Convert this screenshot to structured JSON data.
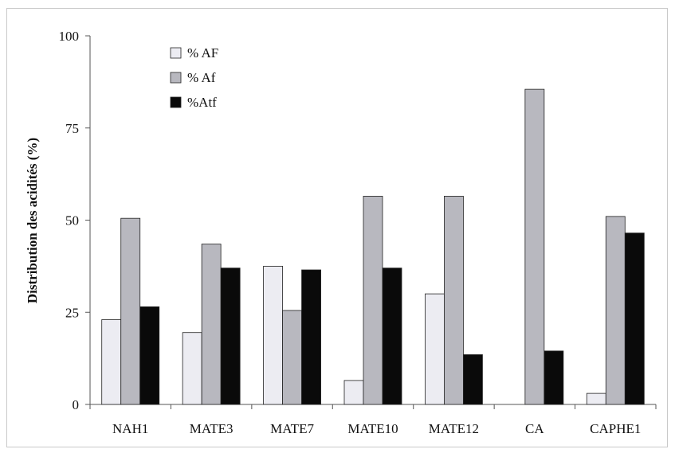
{
  "chart_data": {
    "type": "bar",
    "title": "",
    "xlabel": "",
    "ylabel": "Distribution des acidités (%)",
    "ylim": [
      0,
      100
    ],
    "yticks": [
      0,
      25,
      50,
      75,
      100
    ],
    "grid": false,
    "legend_position": "top-left",
    "categories": [
      "NAH1",
      "MATE3",
      "MATE7",
      "MATE10",
      "MATE12",
      "CA",
      "CAPHE1"
    ],
    "series": [
      {
        "name": "% AF",
        "color": "#ececf2",
        "values": [
          23,
          19.5,
          37.5,
          6.5,
          30,
          0,
          3
        ]
      },
      {
        "name": "% Af",
        "color": "#b8b8bf",
        "values": [
          50.5,
          43.5,
          25.5,
          56.5,
          56.5,
          85.5,
          51
        ]
      },
      {
        "name": "%Atf",
        "color": "#0a0a0a",
        "values": [
          26.5,
          37,
          36.5,
          37,
          13.5,
          14.5,
          46.5
        ]
      }
    ]
  }
}
